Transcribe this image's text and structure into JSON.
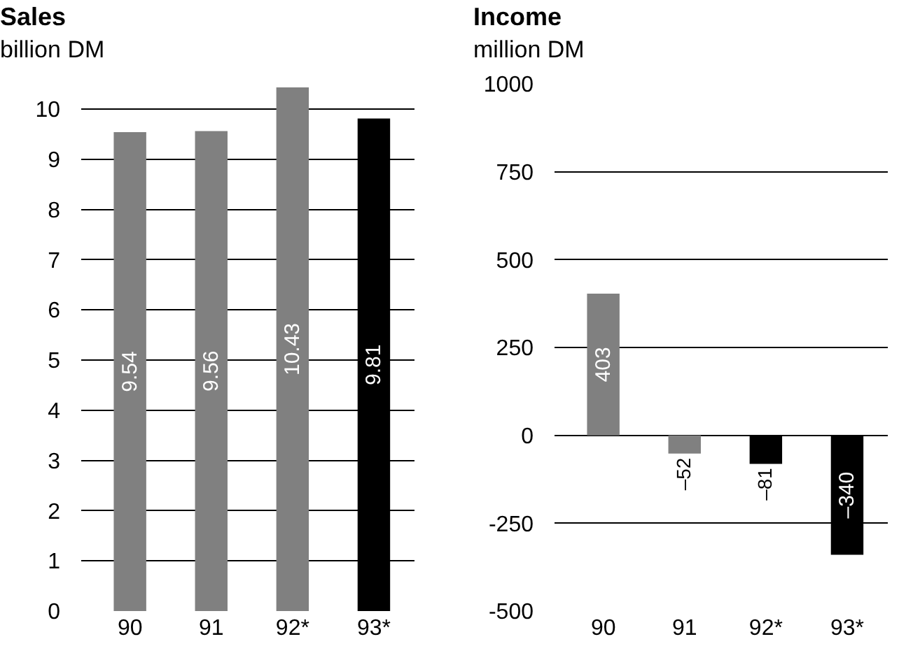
{
  "chart_data": [
    {
      "type": "bar",
      "title": "Sales",
      "subtitle": "billion DM",
      "categories": [
        "90",
        "91",
        "92*",
        "93*"
      ],
      "values": [
        9.54,
        9.56,
        10.43,
        9.81
      ],
      "colors": [
        "#808080",
        "#808080",
        "#808080",
        "#000000"
      ],
      "ylim": [
        0,
        10.5
      ],
      "yticks": [
        0,
        1,
        2,
        3,
        4,
        5,
        6,
        7,
        8,
        9,
        10
      ],
      "grid": "y",
      "data_labels": true
    },
    {
      "type": "bar",
      "title": "Income",
      "subtitle": "million DM",
      "categories": [
        "90",
        "91",
        "92*",
        "93*"
      ],
      "values": [
        403,
        -52,
        -81,
        -340
      ],
      "colors": [
        "#808080",
        "#808080",
        "#000000",
        "#000000"
      ],
      "value_labels": [
        "403",
        "–52",
        "–81",
        "–340"
      ],
      "ylim": [
        -500,
        1000
      ],
      "yticks": [
        1000,
        750,
        500,
        250,
        0,
        -250,
        -500
      ],
      "grid": "y"
    }
  ]
}
